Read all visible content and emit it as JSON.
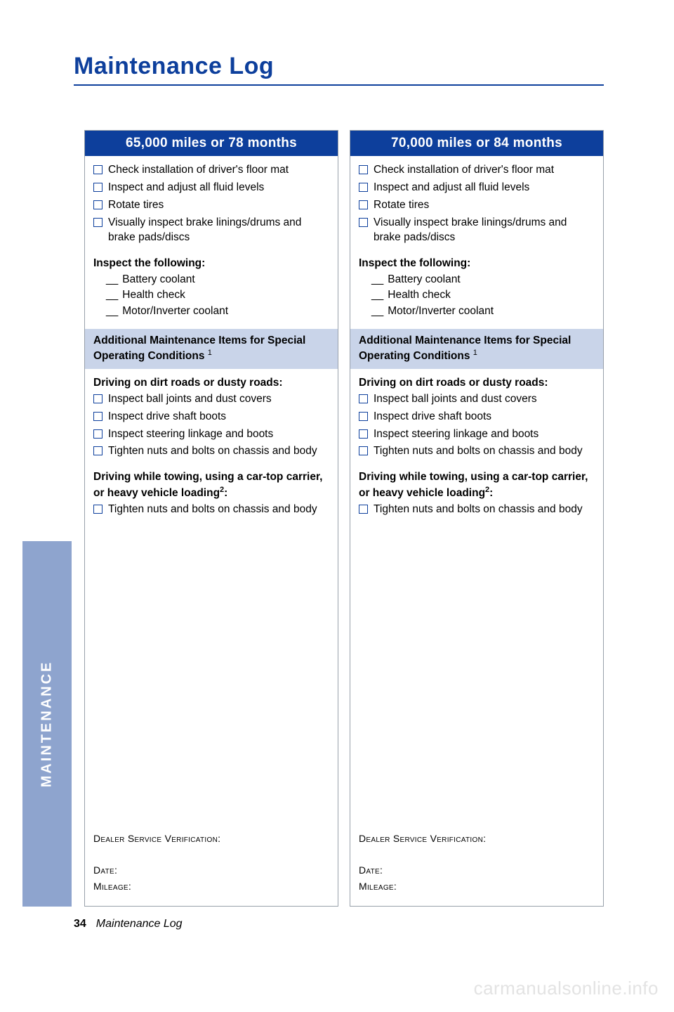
{
  "page": {
    "title": "Maintenance Log",
    "side_tab": "MAINTENANCE",
    "page_number": "34",
    "footer_text": "Maintenance Log",
    "watermark": "carmanualsonline.info"
  },
  "colors": {
    "brand_blue": "#0d3f9c",
    "tab_blue": "#8ea4ce",
    "shaded_bg": "#c9d4e9",
    "border_gray": "#98a0aa",
    "watermark_gray": "#e3e3e3"
  },
  "columns": [
    {
      "header": "65,000 miles or 78 months",
      "checks": [
        "Check installation of driver's floor mat",
        "Inspect and adjust all fluid levels",
        "Rotate tires",
        "Visually inspect brake linings/drums and brake pads/discs"
      ],
      "inspect_label": "Inspect the following:",
      "inspect_items": [
        "Battery coolant",
        "Health check",
        "Motor/Inverter coolant"
      ],
      "shaded_title": "Additional Maintenance Items for Special Operating Conditions",
      "shaded_sup": "1",
      "cond1_label": "Driving on dirt roads or dusty roads:",
      "cond1_items": [
        "Inspect ball joints and dust covers",
        "Inspect drive shaft boots",
        "Inspect steering linkage and boots",
        "Tighten nuts and bolts on chassis and body"
      ],
      "cond2_label": "Driving while towing, using a car-top carrier, or heavy vehicle loading",
      "cond2_sup": "2",
      "cond2_items": [
        "Tighten nuts and bolts on chassis and body"
      ],
      "dealer_label": "Dealer Service Verification:",
      "date_label": "Date:",
      "mileage_label": "Mileage:"
    },
    {
      "header": "70,000 miles or 84 months",
      "checks": [
        "Check installation of driver's floor mat",
        "Inspect and adjust all fluid levels",
        "Rotate tires",
        "Visually inspect brake linings/drums and brake pads/discs"
      ],
      "inspect_label": "Inspect the following:",
      "inspect_items": [
        "Battery coolant",
        "Health check",
        "Motor/Inverter coolant"
      ],
      "shaded_title": "Additional Maintenance Items for Special Operating Conditions",
      "shaded_sup": "1",
      "cond1_label": "Driving on dirt roads or dusty roads:",
      "cond1_items": [
        "Inspect ball joints and dust covers",
        "Inspect drive shaft boots",
        "Inspect steering linkage and boots",
        "Tighten nuts and bolts on chassis and body"
      ],
      "cond2_label": "Driving while towing, using a car-top carrier, or heavy vehicle loading",
      "cond2_sup": "2",
      "cond2_items": [
        "Tighten nuts and bolts on chassis and body"
      ],
      "dealer_label": "Dealer Service Verification:",
      "date_label": "Date:",
      "mileage_label": "Mileage:"
    }
  ]
}
